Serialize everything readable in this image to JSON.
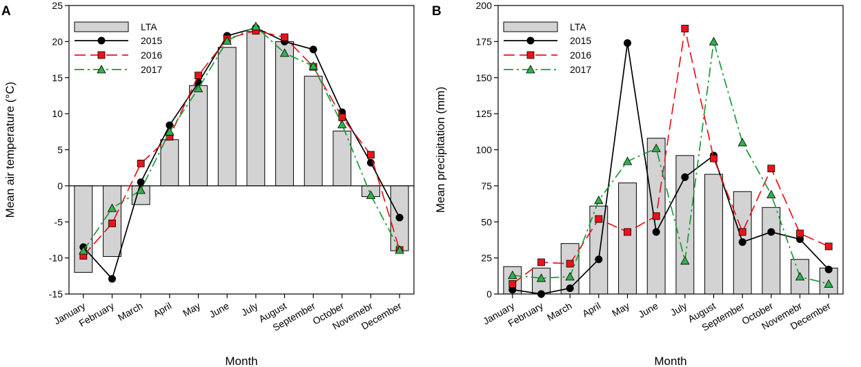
{
  "chart_data": [
    {
      "panel": "A",
      "type": "bar+line",
      "categories": [
        "January",
        "February",
        "March",
        "April",
        "May",
        "June",
        "July",
        "August",
        "September",
        "October",
        "Novemebr",
        "December"
      ],
      "xlabel": "Month",
      "ylabel": "Mean air temperature (°C)",
      "ylim": [
        -15,
        25
      ],
      "yticks": [
        -15,
        -10,
        -5,
        0,
        5,
        10,
        15,
        20,
        25
      ],
      "bars": {
        "name": "LTA",
        "values": [
          -12,
          -9.8,
          -2.6,
          6.4,
          13.9,
          19.2,
          21.4,
          20,
          15.2,
          7.6,
          -1.5,
          -9
        ]
      },
      "series": [
        {
          "name": "2015",
          "values": [
            -8.5,
            -12.9,
            0.5,
            8.4,
            14.3,
            20.8,
            21.9,
            20,
            18.9,
            10.2,
            3.2,
            -4.4
          ]
        },
        {
          "name": "2016",
          "values": [
            -9.7,
            -5.2,
            3.1,
            6.8,
            15.3,
            20.4,
            21.5,
            20.6,
            16.5,
            9.5,
            4.3,
            -8.9
          ]
        },
        {
          "name": "2017",
          "values": [
            -9,
            -3.1,
            -0.6,
            7.5,
            13.5,
            20.1,
            22.1,
            18.4,
            16.6,
            8.5,
            -1.3,
            -8.9
          ]
        }
      ]
    },
    {
      "panel": "B",
      "type": "bar+line",
      "categories": [
        "January",
        "February",
        "March",
        "April",
        "May",
        "June",
        "July",
        "August",
        "September",
        "October",
        "Novemebr",
        "December"
      ],
      "xlabel": "Month",
      "ylabel": "Mean precipitation (mm)",
      "ylim": [
        0,
        200
      ],
      "yticks": [
        0,
        25,
        50,
        75,
        100,
        125,
        150,
        175,
        200
      ],
      "bars": {
        "name": "LTA",
        "values": [
          19,
          18,
          35,
          61,
          77,
          108,
          96,
          83,
          71,
          60,
          24,
          18
        ]
      },
      "series": [
        {
          "name": "2015",
          "values": [
            3,
            0,
            4,
            24,
            174,
            43,
            81,
            96,
            36,
            43,
            38,
            17
          ]
        },
        {
          "name": "2016",
          "values": [
            7,
            22,
            21,
            52,
            43,
            54,
            184,
            94,
            43,
            87,
            42,
            33
          ]
        },
        {
          "name": "2017",
          "values": [
            13,
            11,
            12,
            65,
            92,
            101,
            23,
            175,
            105,
            69,
            12,
            7
          ]
        }
      ]
    }
  ],
  "styles": {
    "bar_fill": "#d3d3d3",
    "bar_stroke": "#000000",
    "series_colors": [
      "#000000",
      "#e8141b",
      "#1a9a38"
    ],
    "marker_fills": [
      "#000000",
      "#e8141b",
      "#2fb04a"
    ]
  }
}
